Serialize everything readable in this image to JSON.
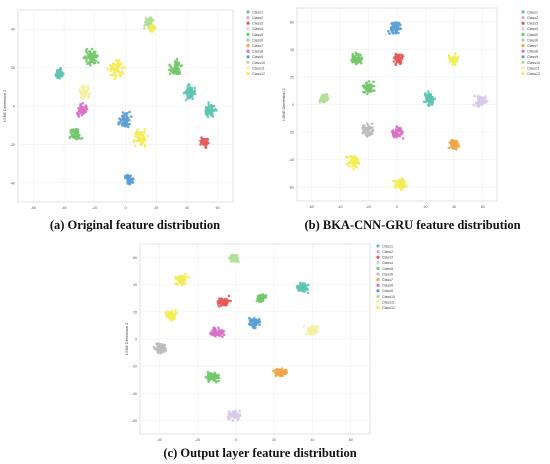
{
  "classes": [
    "Class1",
    "Class2",
    "Class3",
    "Class4",
    "Class5",
    "Class6",
    "Class7",
    "Class8",
    "Class9",
    "Class10",
    "Class11",
    "Class12"
  ],
  "class_colors": [
    "#5ec4b3",
    "#e7a6d2",
    "#e45a5b",
    "#d9c9e8",
    "#72c86a",
    "#bdbdbd",
    "#f2a54b",
    "#d970c5",
    "#5b9fd4",
    "#b0df96",
    "#f6f0a2",
    "#f4ec55"
  ],
  "charts": [
    {
      "caption": "(a) Original feature distribution",
      "ylabel": "t-SNE Dimension 2",
      "xticks": [
        "-60",
        "-40",
        "-20",
        "0",
        "20",
        "40",
        "60"
      ],
      "yticks": [
        "40",
        "20",
        "0",
        "-20",
        "-40"
      ]
    },
    {
      "caption": "(b) BKA-CNN-GRU feature distribution",
      "ylabel": "t-SNE Dimension 2",
      "xticks": [
        "-60",
        "-40",
        "-20",
        "0",
        "20",
        "40",
        "60"
      ],
      "yticks": [
        "60",
        "40",
        "20",
        "0",
        "-20",
        "-40",
        "-60"
      ]
    },
    {
      "caption": "(c) Output layer feature distribution",
      "ylabel": "t-SNE Dimension 2",
      "xticks": [
        "-40",
        "-20",
        "0",
        "20",
        "40",
        "60"
      ],
      "yticks": [
        "60",
        "40",
        "20",
        "0",
        "-20",
        "-40",
        "-60"
      ]
    }
  ],
  "chart_data": [
    {
      "type": "scatter",
      "title": "(a) Original feature distribution",
      "ylabel": "t-SNE Dimension 2",
      "xlim": [
        -60,
        60
      ],
      "ylim": [
        -55,
        50
      ],
      "grid": true,
      "legend": "top-right",
      "clusters": [
        {
          "x": 13,
          "y": 43,
          "class": 9,
          "spread": 3
        },
        {
          "x": 15,
          "y": 40,
          "class": 11,
          "spread": 2
        },
        {
          "x": -19,
          "y": 24,
          "class": 4,
          "spread": 5
        },
        {
          "x": -5,
          "y": 18,
          "class": 11,
          "spread": 6
        },
        {
          "x": -37,
          "y": 15,
          "class": 0,
          "spread": 3
        },
        {
          "x": -23,
          "y": 5,
          "class": 10,
          "spread": 4
        },
        {
          "x": -24,
          "y": -5,
          "class": 7,
          "spread": 4
        },
        {
          "x": -28,
          "y": -18,
          "class": 4,
          "spread": 4
        },
        {
          "x": 0,
          "y": -10,
          "class": 8,
          "spread": 5
        },
        {
          "x": 8,
          "y": -20,
          "class": 11,
          "spread": 5
        },
        {
          "x": 28,
          "y": 18,
          "class": 4,
          "spread": 5
        },
        {
          "x": 36,
          "y": 5,
          "class": 0,
          "spread": 5
        },
        {
          "x": 47,
          "y": -5,
          "class": 0,
          "spread": 4
        },
        {
          "x": 44,
          "y": -22,
          "class": 2,
          "spread": 3
        },
        {
          "x": 2,
          "y": -43,
          "class": 8,
          "spread": 3
        }
      ]
    },
    {
      "type": "scatter",
      "title": "(b) BKA-CNN-GRU feature distribution",
      "ylabel": "t-SNE Dimension 2",
      "xlim": [
        -62,
        62
      ],
      "ylim": [
        -70,
        66
      ],
      "grid": true,
      "legend": "top-right",
      "clusters": [
        {
          "x": -1,
          "y": 52,
          "class": 8,
          "spread": 5
        },
        {
          "x": -25,
          "y": 30,
          "class": 4,
          "spread": 5
        },
        {
          "x": 1,
          "y": 30,
          "class": 2,
          "spread": 4
        },
        {
          "x": 35,
          "y": 30,
          "class": 11,
          "spread": 4
        },
        {
          "x": -18,
          "y": 10,
          "class": 4,
          "spread": 5
        },
        {
          "x": -45,
          "y": 2,
          "class": 9,
          "spread": 4
        },
        {
          "x": 20,
          "y": 2,
          "class": 0,
          "spread": 5
        },
        {
          "x": 52,
          "y": 1,
          "class": 3,
          "spread": 5
        },
        {
          "x": -18,
          "y": -20,
          "class": 5,
          "spread": 5
        },
        {
          "x": 0,
          "y": -22,
          "class": 7,
          "spread": 5
        },
        {
          "x": 35,
          "y": -30,
          "class": 6,
          "spread": 4
        },
        {
          "x": -27,
          "y": -42,
          "class": 11,
          "spread": 5
        },
        {
          "x": 2,
          "y": -58,
          "class": 11,
          "spread": 5
        }
      ]
    },
    {
      "type": "scatter",
      "title": "(c) Output layer feature distribution",
      "ylabel": "t-SNE Dimension 2",
      "xlim": [
        -45,
        65
      ],
      "ylim": [
        -68,
        65
      ],
      "grid": true,
      "legend": "top-right",
      "clusters": [
        {
          "x": 0,
          "y": 55,
          "class": 9,
          "spread": 3
        },
        {
          "x": -25,
          "y": 40,
          "class": 11,
          "spread": 4
        },
        {
          "x": 33,
          "y": 35,
          "class": 0,
          "spread": 4
        },
        {
          "x": -5,
          "y": 25,
          "class": 2,
          "spread": 4
        },
        {
          "x": 13,
          "y": 27,
          "class": 4,
          "spread": 3
        },
        {
          "x": -30,
          "y": 15,
          "class": 11,
          "spread": 4
        },
        {
          "x": 10,
          "y": 10,
          "class": 8,
          "spread": 4
        },
        {
          "x": 37,
          "y": 5,
          "class": 10,
          "spread": 4
        },
        {
          "x": -8,
          "y": 3,
          "class": 7,
          "spread": 4
        },
        {
          "x": -35,
          "y": -8,
          "class": 5,
          "spread": 4
        },
        {
          "x": -10,
          "y": -28,
          "class": 4,
          "spread": 4
        },
        {
          "x": 22,
          "y": -25,
          "class": 6,
          "spread": 4
        },
        {
          "x": 0,
          "y": -55,
          "class": 3,
          "spread": 4
        }
      ]
    }
  ]
}
